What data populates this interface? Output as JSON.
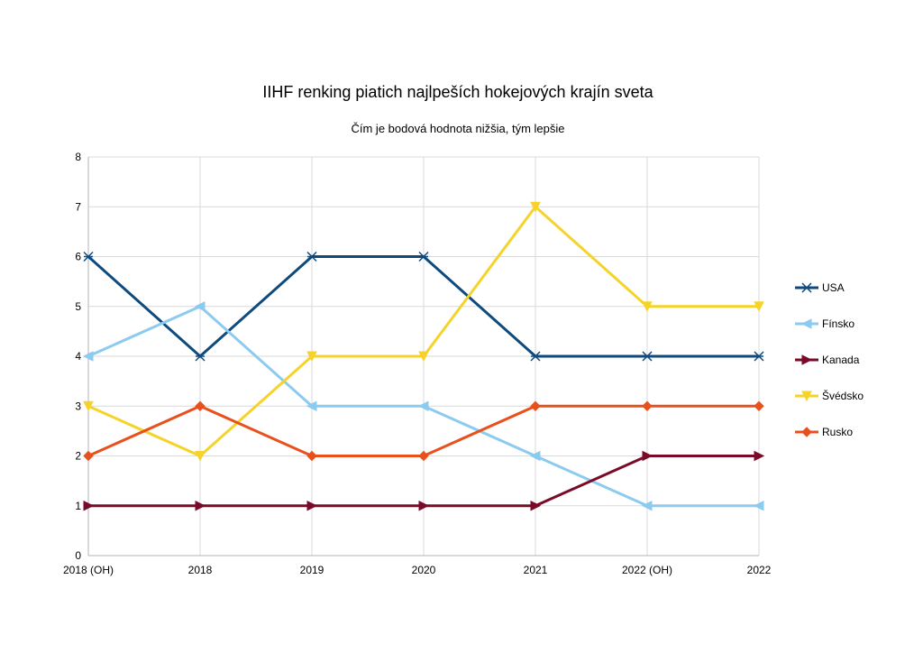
{
  "chart_data": {
    "type": "line",
    "title": "IIHF renking piatich najlpeších hokejových krajín sveta",
    "subtitle": "Čím je bodová hodnota nižšia, tým lepšie",
    "xlabel": "",
    "ylabel": "",
    "categories": [
      "2018 (OH)",
      "2018",
      "2019",
      "2020",
      "2021",
      "2022 (OH)",
      "2022"
    ],
    "ylim": [
      0,
      8
    ],
    "yticks": [
      0,
      1,
      2,
      3,
      4,
      5,
      6,
      7,
      8
    ],
    "grid": true,
    "legend_position": "right",
    "series": [
      {
        "name": "USA",
        "color": "#0e4a7e",
        "marker": "asterisk",
        "values": [
          6,
          4,
          6,
          6,
          4,
          4,
          4
        ]
      },
      {
        "name": "Fínsko",
        "color": "#8ccbf0",
        "marker": "triangle-left",
        "values": [
          4,
          5,
          3,
          3,
          2,
          1,
          1
        ]
      },
      {
        "name": "Kanada",
        "color": "#7a0a28",
        "marker": "triangle-right",
        "values": [
          1,
          1,
          1,
          1,
          1,
          2,
          2
        ]
      },
      {
        "name": "Švédsko",
        "color": "#f5d32a",
        "marker": "triangle-down",
        "values": [
          3,
          2,
          4,
          4,
          7,
          5,
          5
        ]
      },
      {
        "name": "Rusko",
        "color": "#e8501c",
        "marker": "diamond",
        "values": [
          2,
          3,
          2,
          2,
          3,
          3,
          3
        ]
      }
    ]
  }
}
